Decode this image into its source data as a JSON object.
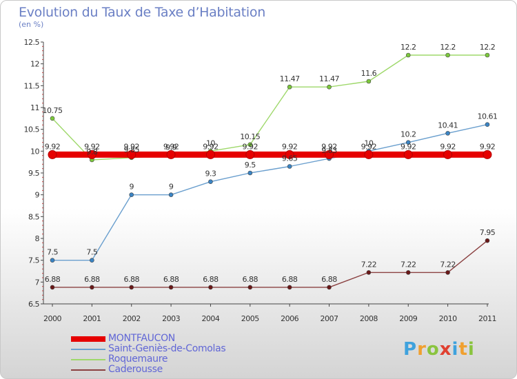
{
  "title": "Evolution du Taux de Taxe d’Habitation",
  "subtitle": "(en %)",
  "logo": "Proxiti",
  "chart_data": {
    "type": "line",
    "x": [
      "2000",
      "2001",
      "2002",
      "2003",
      "2004",
      "2005",
      "2006",
      "2007",
      "2008",
      "2009",
      "2010",
      "2011"
    ],
    "ylim": [
      6.5,
      12.5
    ],
    "yticks": [
      "6.5",
      "7",
      "7.5",
      "8",
      "8.5",
      "9",
      "9.5",
      "10",
      "10.5",
      "11",
      "11.5",
      "12",
      "12.5"
    ],
    "grid": false,
    "legend_position": "bottom-left",
    "series": [
      {
        "name": "MONTFAUCON",
        "color": "#e60000",
        "values": [
          9.92,
          9.92,
          9.92,
          9.92,
          9.92,
          9.92,
          9.92,
          9.92,
          9.92,
          9.92,
          9.92,
          9.92
        ],
        "labels": [
          "9.92",
          "9.92",
          "9.92",
          "9.92",
          "9.92",
          "9.92",
          "9.92",
          "9.92",
          "9.92",
          "9.92",
          "9.92",
          "9.92"
        ]
      },
      {
        "name": "Saint-Geniès-de-Comolas",
        "color": "#6a9fce",
        "point_color": "#3a84c4",
        "values": [
          7.5,
          7.5,
          9,
          9,
          9.3,
          9.5,
          9.65,
          9.83,
          10,
          10.2,
          10.41,
          10.61
        ],
        "labels": [
          "7.5",
          "7.5",
          "9",
          "9",
          "9.3",
          "9.5",
          "9.65",
          "9.83",
          "10",
          "10.2",
          "10.41",
          "10.61"
        ]
      },
      {
        "name": "Roquemaure",
        "color": "#9ed86a",
        "point_color": "#7cc83c",
        "values": [
          10.75,
          9.8,
          9.85,
          9.9,
          10,
          10.15,
          11.47,
          11.47,
          11.6,
          12.2,
          12.2,
          12.2
        ],
        "labels": [
          "10.75",
          "9.8",
          "9.85",
          "9.9",
          "10",
          "10.15",
          "11.47",
          "11.47",
          "11.6",
          "12.2",
          "12.2",
          "12.2"
        ]
      },
      {
        "name": "Caderousse",
        "color": "#8a4040",
        "point_color": "#6a1818",
        "values": [
          6.88,
          6.88,
          6.88,
          6.88,
          6.88,
          6.88,
          6.88,
          6.88,
          7.22,
          7.22,
          7.22,
          7.95
        ],
        "labels": [
          "6.88",
          "6.88",
          "6.88",
          "6.88",
          "6.88",
          "6.88",
          "6.88",
          "6.88",
          "7.22",
          "7.22",
          "7.22",
          "7.95"
        ]
      }
    ]
  }
}
